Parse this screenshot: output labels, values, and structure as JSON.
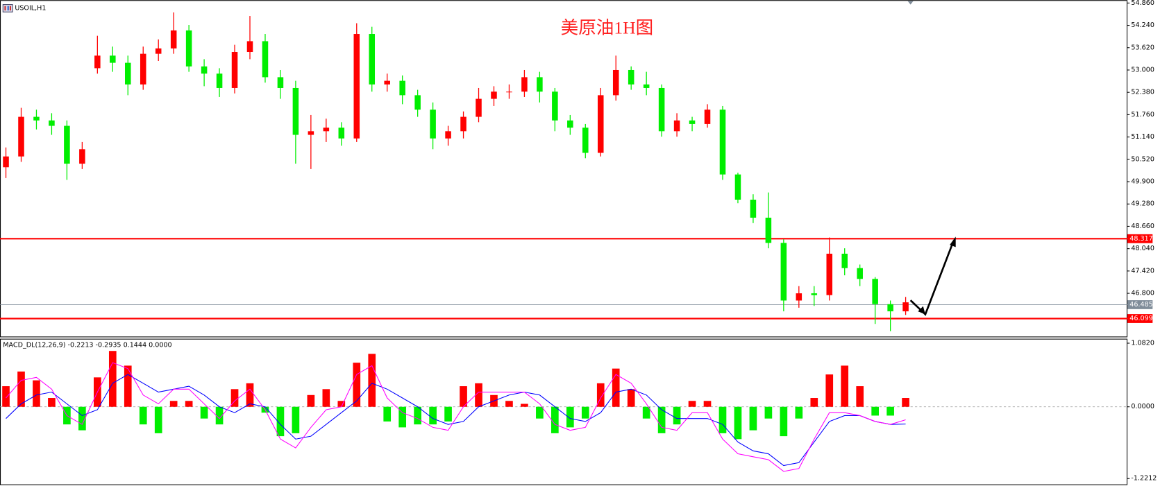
{
  "chart_data": [
    {
      "type": "candlestick",
      "label": "USOIL,H1",
      "title": "美原油1H图",
      "open": [
        50.3,
        50.6,
        51.7,
        51.6,
        51.45,
        50.4,
        53.05,
        53.4,
        53.2,
        52.6,
        53.45,
        53.6,
        54.1,
        53.1,
        52.9,
        52.5,
        53.5,
        53.8,
        52.8,
        52.5,
        51.2,
        51.3,
        51.4,
        51.1,
        54.0,
        52.6,
        52.7,
        52.3,
        51.9,
        51.1,
        51.3,
        51.7,
        52.2,
        52.4,
        52.4,
        52.8,
        52.4,
        51.6,
        51.4,
        50.7,
        52.3,
        53.0,
        52.6,
        52.5,
        51.3,
        51.6,
        51.5,
        51.9,
        50.1,
        49.4,
        48.9,
        48.2,
        46.6,
        46.8,
        46.75,
        47.9,
        47.5,
        47.2,
        46.5,
        46.3
      ],
      "high": [
        50.85,
        51.95,
        51.9,
        51.8,
        51.6,
        51.0,
        53.95,
        53.65,
        53.4,
        53.65,
        53.85,
        54.6,
        54.25,
        53.3,
        53.05,
        53.7,
        54.5,
        54.0,
        53.0,
        52.7,
        51.75,
        51.65,
        51.55,
        54.3,
        54.2,
        52.9,
        52.85,
        52.45,
        52.1,
        51.45,
        51.85,
        52.5,
        52.55,
        52.6,
        53.0,
        52.95,
        52.5,
        51.75,
        51.5,
        52.5,
        53.4,
        53.1,
        52.95,
        52.6,
        51.8,
        51.7,
        52.05,
        52.0,
        50.15,
        49.55,
        49.6,
        48.3,
        47.0,
        47.0,
        48.35,
        48.05,
        47.6,
        47.25,
        46.6,
        46.7
      ],
      "low": [
        50.0,
        50.45,
        51.35,
        51.2,
        49.95,
        50.25,
        52.9,
        52.95,
        52.3,
        52.45,
        53.25,
        53.45,
        52.95,
        52.55,
        52.25,
        52.35,
        53.3,
        52.65,
        52.2,
        50.4,
        50.25,
        51.0,
        50.9,
        51.0,
        52.4,
        52.4,
        52.05,
        51.7,
        50.8,
        50.9,
        51.1,
        51.55,
        52.0,
        52.2,
        52.25,
        52.1,
        51.3,
        51.2,
        50.55,
        50.6,
        52.15,
        52.45,
        52.3,
        51.15,
        51.15,
        51.3,
        51.4,
        49.95,
        49.3,
        48.75,
        48.05,
        46.3,
        46.4,
        46.45,
        46.6,
        47.3,
        47.0,
        45.95,
        45.75,
        46.2
      ],
      "close": [
        50.6,
        51.7,
        51.6,
        51.45,
        50.4,
        50.8,
        53.4,
        53.2,
        52.6,
        53.45,
        53.6,
        54.1,
        53.1,
        52.9,
        52.5,
        53.5,
        53.8,
        52.8,
        52.5,
        51.2,
        51.3,
        51.4,
        51.1,
        54.0,
        52.6,
        52.7,
        52.3,
        51.9,
        51.1,
        51.3,
        51.7,
        52.2,
        52.4,
        52.4,
        52.8,
        52.4,
        51.6,
        51.4,
        50.7,
        52.3,
        53.0,
        52.6,
        52.5,
        51.3,
        51.6,
        51.5,
        51.9,
        50.1,
        49.4,
        48.9,
        48.2,
        46.6,
        46.8,
        46.75,
        47.9,
        47.5,
        47.2,
        46.5,
        46.3,
        46.55
      ],
      "up_color": "#ff0000",
      "down_color": "#00ee00",
      "ylim": [
        45.58,
        54.94
      ],
      "yticks": [
        {
          "value": 54.86,
          "label": "54.860"
        },
        {
          "value": 54.24,
          "label": "54.240"
        },
        {
          "value": 53.62,
          "label": "53.620"
        },
        {
          "value": 53,
          "label": "53.000"
        },
        {
          "value": 52.38,
          "label": "52.380"
        },
        {
          "value": 51.76,
          "label": "51.760"
        },
        {
          "value": 51.14,
          "label": "51.140"
        },
        {
          "value": 50.52,
          "label": "50.520"
        },
        {
          "value": 49.9,
          "label": "49.900"
        },
        {
          "value": 49.28,
          "label": "49.280"
        },
        {
          "value": 48.66,
          "label": "48.660"
        },
        {
          "value": 48.04,
          "label": "48.040"
        },
        {
          "value": 47.42,
          "label": "47.420"
        },
        {
          "value": 46.8,
          "label": "46.800"
        }
      ],
      "levels": [
        {
          "value": 48.317,
          "color": "#ff0000"
        },
        {
          "value": 46.099,
          "color": "#ff0000"
        }
      ],
      "current_price": {
        "value": 46.485,
        "color": "#7f8c99"
      }
    },
    {
      "type": "macd",
      "label": "MACD_DL(12,26,9) -0.2213 -0.2935 0.1444 0.0000",
      "histogram": [
        0.35,
        0.6,
        0.45,
        0.15,
        -0.3,
        -0.4,
        0.5,
        0.95,
        0.7,
        -0.3,
        -0.45,
        0.1,
        0.1,
        -0.2,
        -0.3,
        0.3,
        0.4,
        -0.1,
        -0.5,
        -0.45,
        0.2,
        0.3,
        0.1,
        0.75,
        0.9,
        -0.25,
        -0.35,
        -0.3,
        -0.3,
        -0.25,
        0.35,
        0.4,
        0.2,
        0.1,
        0.05,
        -0.2,
        -0.45,
        -0.35,
        -0.2,
        0.4,
        0.65,
        0.3,
        -0.2,
        -0.45,
        -0.3,
        0.1,
        0.1,
        -0.45,
        -0.55,
        -0.4,
        -0.2,
        -0.5,
        -0.2,
        0.15,
        0.55,
        0.7,
        0.35,
        -0.15,
        -0.15,
        0.15
      ],
      "macd": [
        0.15,
        0.45,
        0.5,
        0.3,
        -0.15,
        -0.3,
        0.25,
        0.75,
        0.65,
        0.2,
        0.05,
        0.3,
        0.3,
        0.05,
        -0.2,
        0.1,
        0.3,
        -0.05,
        -0.55,
        -0.7,
        -0.35,
        -0.05,
        0.0,
        0.55,
        0.7,
        0.15,
        -0.1,
        -0.2,
        -0.35,
        -0.4,
        0.0,
        0.25,
        0.25,
        0.25,
        0.25,
        0.05,
        -0.3,
        -0.4,
        -0.35,
        0.15,
        0.55,
        0.4,
        0.05,
        -0.35,
        -0.4,
        -0.1,
        -0.1,
        -0.55,
        -0.8,
        -0.85,
        -0.9,
        -1.1,
        -1.05,
        -0.55,
        -0.1,
        -0.1,
        -0.15,
        -0.25,
        -0.3,
        -0.2213
      ],
      "signal": [
        -0.2,
        0.05,
        0.2,
        0.25,
        0.05,
        -0.15,
        -0.05,
        0.4,
        0.55,
        0.4,
        0.25,
        0.3,
        0.35,
        0.2,
        0.0,
        -0.1,
        0.05,
        0.0,
        -0.3,
        -0.55,
        -0.5,
        -0.3,
        -0.1,
        0.1,
        0.4,
        0.3,
        0.15,
        0.0,
        -0.2,
        -0.3,
        -0.25,
        0.0,
        0.1,
        0.2,
        0.25,
        0.2,
        0.0,
        -0.2,
        -0.25,
        -0.1,
        0.25,
        0.3,
        0.2,
        -0.05,
        -0.2,
        -0.2,
        -0.2,
        -0.3,
        -0.6,
        -0.75,
        -0.8,
        -1.0,
        -0.95,
        -0.6,
        -0.25,
        -0.15,
        -0.15,
        -0.25,
        -0.3,
        -0.2935
      ],
      "up_color": "#ff0000",
      "down_color": "#00ee00",
      "macd_color": "#ff00ff",
      "signal_color": "#0000ff",
      "ylim": [
        -1.333,
        1.145
      ],
      "yticks": [
        {
          "value": 1.082,
          "label": "1.0820"
        },
        {
          "value": 0,
          "label": "0.0000"
        },
        -1.2212
      ]
    }
  ]
}
